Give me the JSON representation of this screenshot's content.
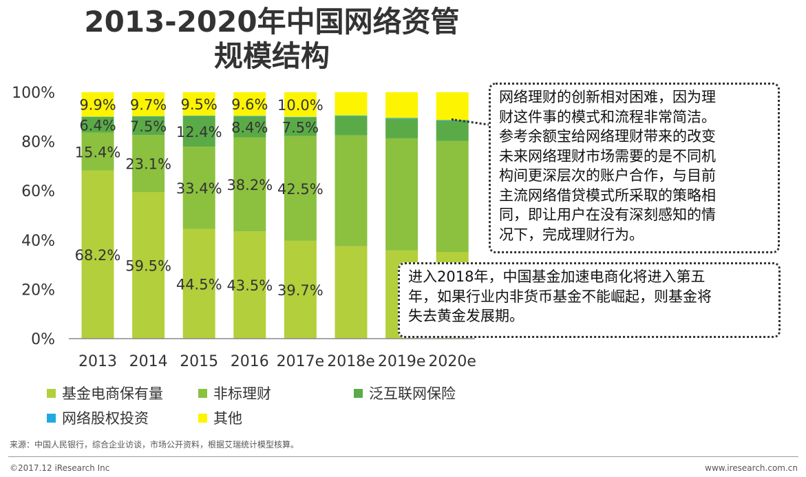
{
  "title": {
    "line1": "2013-2020年中国网络资管",
    "line2": "规模结构"
  },
  "chart_data": {
    "type": "bar",
    "stacked": true,
    "categories": [
      "2013",
      "2014",
      "2015",
      "2016",
      "2017e",
      "2018e",
      "2019e",
      "2020e"
    ],
    "ylim": [
      0,
      100
    ],
    "ytick_labels": [
      "0%",
      "20%",
      "40%",
      "60%",
      "80%",
      "100%"
    ],
    "series": [
      {
        "name": "基金电商保有量",
        "color": "#b3cf3b",
        "values": [
          68.2,
          59.5,
          44.5,
          43.5,
          39.7,
          37.5,
          35.8,
          35.2
        ],
        "labels": [
          "68.2%",
          "59.5%",
          "44.5%",
          "43.5%",
          "39.7%",
          "",
          "",
          ""
        ]
      },
      {
        "name": "非标理财",
        "color": "#8cc03f",
        "values": [
          15.4,
          23.1,
          33.4,
          38.2,
          42.5,
          45.0,
          45.5,
          45.0
        ],
        "labels": [
          "15.4%",
          "23.1%",
          "33.4%",
          "38.2%",
          "42.5%",
          "",
          "",
          ""
        ]
      },
      {
        "name": "泛互联网保险",
        "color": "#5aab48",
        "values": [
          6.4,
          7.5,
          12.4,
          8.4,
          7.5,
          7.8,
          8.0,
          8.2
        ],
        "labels": [
          "6.4%",
          "7.5%",
          "12.4%",
          "8.4%",
          "7.5%",
          "",
          "",
          ""
        ]
      },
      {
        "name": "网络股权投资",
        "color": "#21a9e1",
        "values": [
          0.1,
          0.2,
          0.2,
          0.3,
          0.3,
          0.3,
          0.3,
          0.3
        ],
        "labels": [
          "",
          "",
          "",
          "",
          "",
          "",
          "",
          ""
        ]
      },
      {
        "name": "其他",
        "color": "#fcf400",
        "values": [
          9.9,
          9.7,
          9.5,
          9.6,
          10.0,
          9.4,
          10.4,
          11.3
        ],
        "labels": [
          "9.9%",
          "9.7%",
          "9.5%",
          "9.6%",
          "10.0%",
          "",
          "",
          ""
        ]
      }
    ]
  },
  "notes": {
    "box1": "网络理财的创新相对困难，因为理\n财这件事的模式和流程非常简洁。\n参考余额宝给网络理财带来的改变\n未来网络理财市场需要的是不同机\n构间更深层次的账户合作，与目前\n主流网络借贷模式所采取的策略相\n同，即让用户在没有深刻感知的情\n况下，完成理财行为。",
    "box2": "进入2018年，中国基金加速电商化将进入第五\n年，如果行业内非货币基金不能崛起，则基金将\n失去黄金发展期。"
  },
  "source": "来源：中国人民银行，综合企业访谈，市场公开资料，根据艾瑞统计模型核算。",
  "footer": {
    "copyright": "©2017.12 iResearch Inc",
    "site": "www.iresearch.com.cn"
  }
}
